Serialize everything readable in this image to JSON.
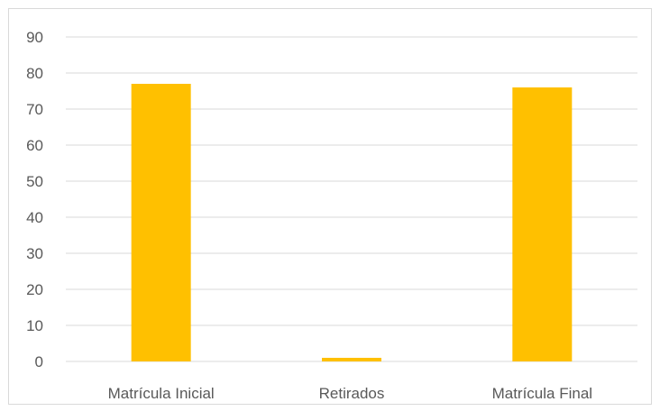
{
  "chart_data": {
    "type": "bar",
    "categories": [
      "Matrícula Inicial",
      "Retirados",
      "Matrícula Final"
    ],
    "values": [
      77,
      1,
      76
    ],
    "title": "",
    "xlabel": "",
    "ylabel": "",
    "ylim": [
      0,
      90
    ],
    "yticks": [
      0,
      10,
      20,
      30,
      40,
      50,
      60,
      70,
      80,
      90
    ],
    "grid": true,
    "legend": "none",
    "colors": {
      "bar": "#ffc000",
      "grid": "#d9d9d9",
      "axis_text": "#595959",
      "frame": "#d9d9d9"
    }
  }
}
